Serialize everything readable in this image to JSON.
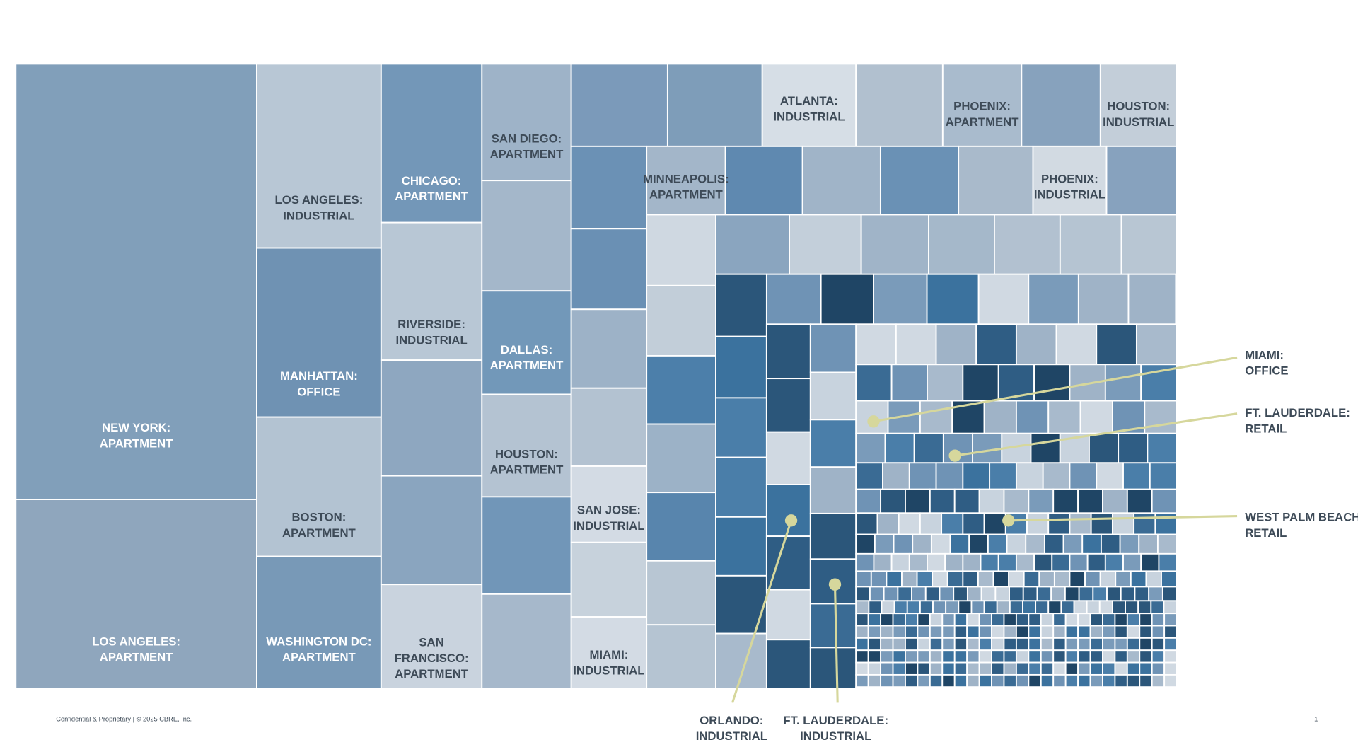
{
  "tiles": [
    {
      "lines": [
        "NEW YORK:",
        "APARTMENT"
      ]
    },
    {
      "lines": [
        "LOS ANGELES:",
        "APARTMENT"
      ]
    },
    {
      "lines": [
        "LOS ANGELES:",
        "INDUSTRIAL"
      ]
    },
    {
      "lines": [
        "MANHATTAN:",
        "OFFICE"
      ]
    },
    {
      "lines": [
        "BOSTON:",
        "APARTMENT"
      ]
    },
    {
      "lines": [
        "WASHINGTON DC:",
        "APARTMENT"
      ]
    },
    {
      "lines": [
        "CHICAGO:",
        "APARTMENT"
      ]
    },
    {
      "lines": [
        "RIVERSIDE:",
        "INDUSTRIAL"
      ]
    },
    {
      "lines": [
        "SAN",
        "FRANCISCO:",
        "APARTMENT"
      ]
    },
    {
      "lines": [
        "SAN DIEGO:",
        "APARTMENT"
      ]
    },
    {
      "lines": [
        "DALLAS:",
        "APARTMENT"
      ]
    },
    {
      "lines": [
        "HOUSTON:",
        "APARTMENT"
      ]
    },
    {
      "lines": [
        "ATLANTA:",
        "INDUSTRIAL"
      ]
    },
    {
      "lines": [
        "PHOENIX:",
        "APARTMENT"
      ]
    },
    {
      "lines": [
        "HOUSTON:",
        "INDUSTRIAL"
      ]
    },
    {
      "lines": [
        "SAN JOSE:",
        "INDUSTRIAL"
      ]
    },
    {
      "lines": [
        "MIAMI:",
        "INDUSTRIAL"
      ]
    },
    {
      "lines": [
        "MINNEAPOLIS:",
        "APARTMENT"
      ]
    },
    {
      "lines": [
        "PHOENIX:",
        "INDUSTRIAL"
      ]
    }
  ],
  "callouts": [
    {
      "lines": [
        "MIAMI:",
        "OFFICE"
      ]
    },
    {
      "lines": [
        "FT. LAUDERDALE:",
        "RETAIL"
      ]
    },
    {
      "lines": [
        "WEST PALM BEACH:",
        "RETAIL"
      ]
    },
    {
      "lines": [
        "ORLANDO:",
        "INDUSTRIAL"
      ]
    },
    {
      "lines": [
        "FT. LAUDERDALE:",
        "INDUSTRIAL"
      ]
    }
  ],
  "footer": {
    "left": "Confidential & Proprietary | © 2025 CBRE, Inc.",
    "page": "1"
  }
}
